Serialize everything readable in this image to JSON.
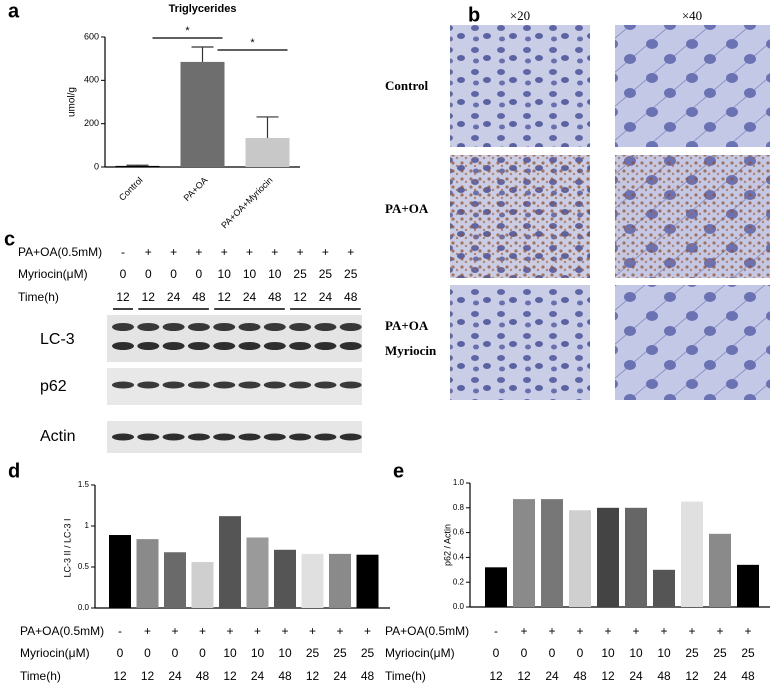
{
  "panel_labels": [
    "a",
    "b",
    "c",
    "d",
    "e"
  ],
  "chart_data": [
    {
      "type": "bar",
      "title": "Triglycerides",
      "y_label": "umol/g",
      "categories": [
        "Control",
        "PA+OA",
        "PA+OA+Myriocin"
      ],
      "values": [
        5,
        485,
        134
      ],
      "errors": [
        3,
        69,
        97
      ],
      "colors": [
        "#000000",
        "#6e6e6e",
        "#c8c8c8"
      ],
      "ylim": [
        0,
        600
      ],
      "yticks": [
        0,
        200,
        400,
        600
      ],
      "annotations": [
        "*",
        "*"
      ]
    },
    {
      "type": "bar",
      "y_label": "LC-3 II / LC-3 I",
      "values": [
        0.89,
        0.84,
        0.68,
        0.56,
        1.12,
        0.86,
        0.71,
        0.66,
        0.66,
        0.65
      ],
      "colors": [
        "#000000",
        "#8a8a8a",
        "#6a6a6a",
        "#cfcfcf",
        "#555555",
        "#9a9a9a",
        "#555555",
        "#e0e0e0",
        "#8a8a8a",
        "#000000"
      ],
      "ylim": [
        0,
        1.5
      ],
      "yticks": [
        {
          "value": 0,
          "label": "0.0"
        },
        0.5,
        1,
        1.5
      ],
      "treatment_rows": [
        {
          "name": "PA+OA(0.5mM)",
          "labels": [
            "-",
            "+",
            "+",
            "+",
            "+",
            "+",
            "+",
            "+",
            "+",
            "+"
          ]
        },
        {
          "name": "Myriocin(μM)",
          "labels": [
            "0",
            "0",
            "0",
            "0",
            "10",
            "10",
            "10",
            "25",
            "25",
            "25"
          ]
        },
        {
          "name": "Time(h)",
          "labels": [
            "12",
            "12",
            "24",
            "48",
            "12",
            "24",
            "48",
            "12",
            "24",
            "48"
          ]
        }
      ]
    },
    {
      "type": "bar",
      "y_label": "p62 / Actin",
      "values": [
        0.32,
        0.87,
        0.87,
        0.78,
        0.8,
        0.8,
        0.3,
        0.85,
        0.59,
        0.34
      ],
      "colors": [
        "#000000",
        "#8a8a8a",
        "#777777",
        "#cfcfcf",
        "#444444",
        "#666666",
        "#555555",
        "#e0e0e0",
        "#8a8a8a",
        "#000000"
      ],
      "ylim": [
        0,
        1.0
      ],
      "yticks": [
        {
          "value": 0,
          "label": "0.0"
        },
        0.2,
        0.4,
        0.6,
        0.8,
        {
          "value": 1.0,
          "label": "1.0"
        }
      ],
      "treatment_rows": [
        {
          "name": "PA+OA(0.5mM)",
          "labels": [
            "-",
            "+",
            "+",
            "+",
            "+",
            "+",
            "+",
            "+",
            "+",
            "+"
          ]
        },
        {
          "name": "Myriocin(μM)",
          "labels": [
            "0",
            "0",
            "0",
            "0",
            "10",
            "10",
            "10",
            "25",
            "25",
            "25"
          ]
        },
        {
          "name": "Time(h)",
          "labels": [
            "12",
            "12",
            "24",
            "48",
            "12",
            "24",
            "48",
            "12",
            "24",
            "48"
          ]
        }
      ]
    }
  ],
  "micrographs": {
    "magnifications": [
      "×20",
      "×40"
    ],
    "row_labels": [
      [
        "Control"
      ],
      [
        "PA+OA"
      ],
      [
        "PA+OA",
        "Myriocin"
      ]
    ]
  },
  "western_blot": {
    "treatment_rows": [
      {
        "name": "PA+OA(0.5mM)",
        "labels": [
          "-",
          "+",
          "+",
          "+",
          "+",
          "+",
          "+",
          "+",
          "+",
          "+"
        ]
      },
      {
        "name": "Myriocin(μM)",
        "labels": [
          "0",
          "0",
          "0",
          "0",
          "10",
          "10",
          "10",
          "25",
          "25",
          "25"
        ]
      },
      {
        "name": "Time(h)",
        "labels": [
          "12",
          "12",
          "24",
          "48",
          "12",
          "24",
          "48",
          "12",
          "24",
          "48"
        ]
      }
    ],
    "proteins": [
      "LC-3",
      "p62",
      "Actin"
    ]
  }
}
